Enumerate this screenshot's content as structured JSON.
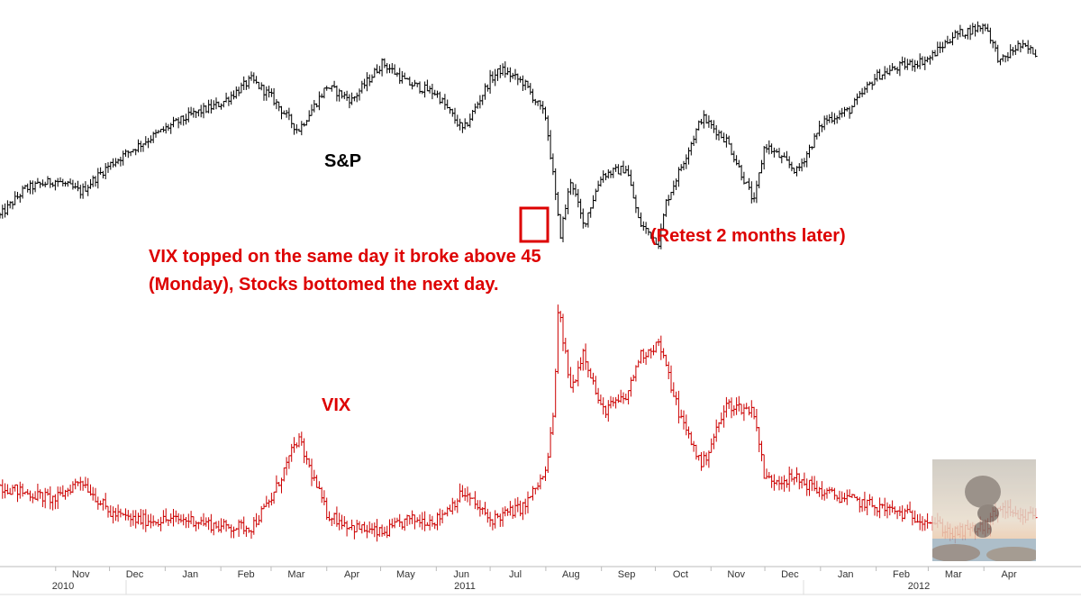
{
  "annotations": {
    "sp_label": "S&P",
    "vix_label": "VIX",
    "vix_note_line1": "VIX topped on the same day it broke above 45",
    "vix_note_line2": "(Monday), Stocks bottomed the next day.",
    "retest_note": "(Retest 2 months later)"
  },
  "colors": {
    "sp_series": "#000000",
    "vix_series": "#cc0000",
    "annotation": "#dd0000",
    "highlight_box": "#dd0000"
  },
  "chart_data": {
    "type": "line",
    "title": "",
    "xlabel": "",
    "ylabel": "",
    "x_axis": {
      "months": [
        "Nov",
        "Dec",
        "Jan",
        "Feb",
        "Mar",
        "Apr",
        "May",
        "Jun",
        "Jul",
        "Aug",
        "Sep",
        "Oct",
        "Nov",
        "Dec",
        "Jan",
        "Feb",
        "Mar",
        "Apr"
      ],
      "years": [
        "2010",
        "2011",
        "2012"
      ]
    },
    "series": [
      {
        "name": "S&P",
        "x": [
          "2010-10-01",
          "2010-10-15",
          "2010-11-01",
          "2010-11-15",
          "2010-12-01",
          "2010-12-15",
          "2011-01-03",
          "2011-01-17",
          "2011-02-01",
          "2011-02-18",
          "2011-03-01",
          "2011-03-16",
          "2011-04-01",
          "2011-04-15",
          "2011-05-02",
          "2011-05-16",
          "2011-06-01",
          "2011-06-16",
          "2011-07-01",
          "2011-07-07",
          "2011-07-20",
          "2011-08-01",
          "2011-08-05",
          "2011-08-09",
          "2011-08-15",
          "2011-08-22",
          "2011-09-01",
          "2011-09-15",
          "2011-09-22",
          "2011-10-03",
          "2011-10-07",
          "2011-10-15",
          "2011-10-27",
          "2011-11-10",
          "2011-11-25",
          "2011-12-01",
          "2011-12-19",
          "2012-01-03",
          "2012-01-17",
          "2012-02-01",
          "2012-02-15",
          "2012-03-01",
          "2012-03-15",
          "2012-04-02",
          "2012-04-10",
          "2012-04-20",
          "2012-04-30"
        ],
        "values": [
          1140,
          1180,
          1192,
          1175,
          1215,
          1240,
          1271,
          1290,
          1305,
          1340,
          1315,
          1265,
          1330,
          1310,
          1365,
          1335,
          1320,
          1265,
          1340,
          1355,
          1335,
          1285,
          1200,
          1110,
          1195,
          1125,
          1200,
          1210,
          1130,
          1100,
          1160,
          1210,
          1285,
          1250,
          1160,
          1245,
          1205,
          1280,
          1295,
          1345,
          1360,
          1370,
          1405,
          1420,
          1365,
          1390,
          1380
        ]
      },
      {
        "name": "VIX",
        "x": [
          "2010-10-01",
          "2010-10-15",
          "2010-11-01",
          "2010-11-15",
          "2010-12-01",
          "2010-12-15",
          "2011-01-03",
          "2011-01-17",
          "2011-02-01",
          "2011-02-18",
          "2011-03-01",
          "2011-03-16",
          "2011-04-01",
          "2011-04-15",
          "2011-05-02",
          "2011-05-16",
          "2011-06-01",
          "2011-06-16",
          "2011-07-01",
          "2011-07-20",
          "2011-08-01",
          "2011-08-05",
          "2011-08-08",
          "2011-08-15",
          "2011-08-22",
          "2011-09-01",
          "2011-09-15",
          "2011-09-22",
          "2011-10-03",
          "2011-10-15",
          "2011-10-27",
          "2011-11-10",
          "2011-11-25",
          "2011-12-01",
          "2011-12-19",
          "2012-01-03",
          "2012-01-17",
          "2012-02-01",
          "2012-02-15",
          "2012-03-01",
          "2012-03-15",
          "2012-04-02",
          "2012-04-10",
          "2012-04-20",
          "2012-04-30"
        ],
        "values": [
          22,
          21,
          20,
          23,
          18,
          17,
          17,
          17,
          16,
          16,
          20,
          29,
          18,
          16,
          15,
          17,
          17,
          21,
          17,
          19,
          24,
          32,
          48,
          36,
          42,
          33,
          35,
          41,
          43,
          32,
          25,
          34,
          33,
          23,
          23,
          21,
          20,
          19,
          18,
          17,
          15,
          16,
          19,
          17,
          18
        ]
      }
    ]
  }
}
